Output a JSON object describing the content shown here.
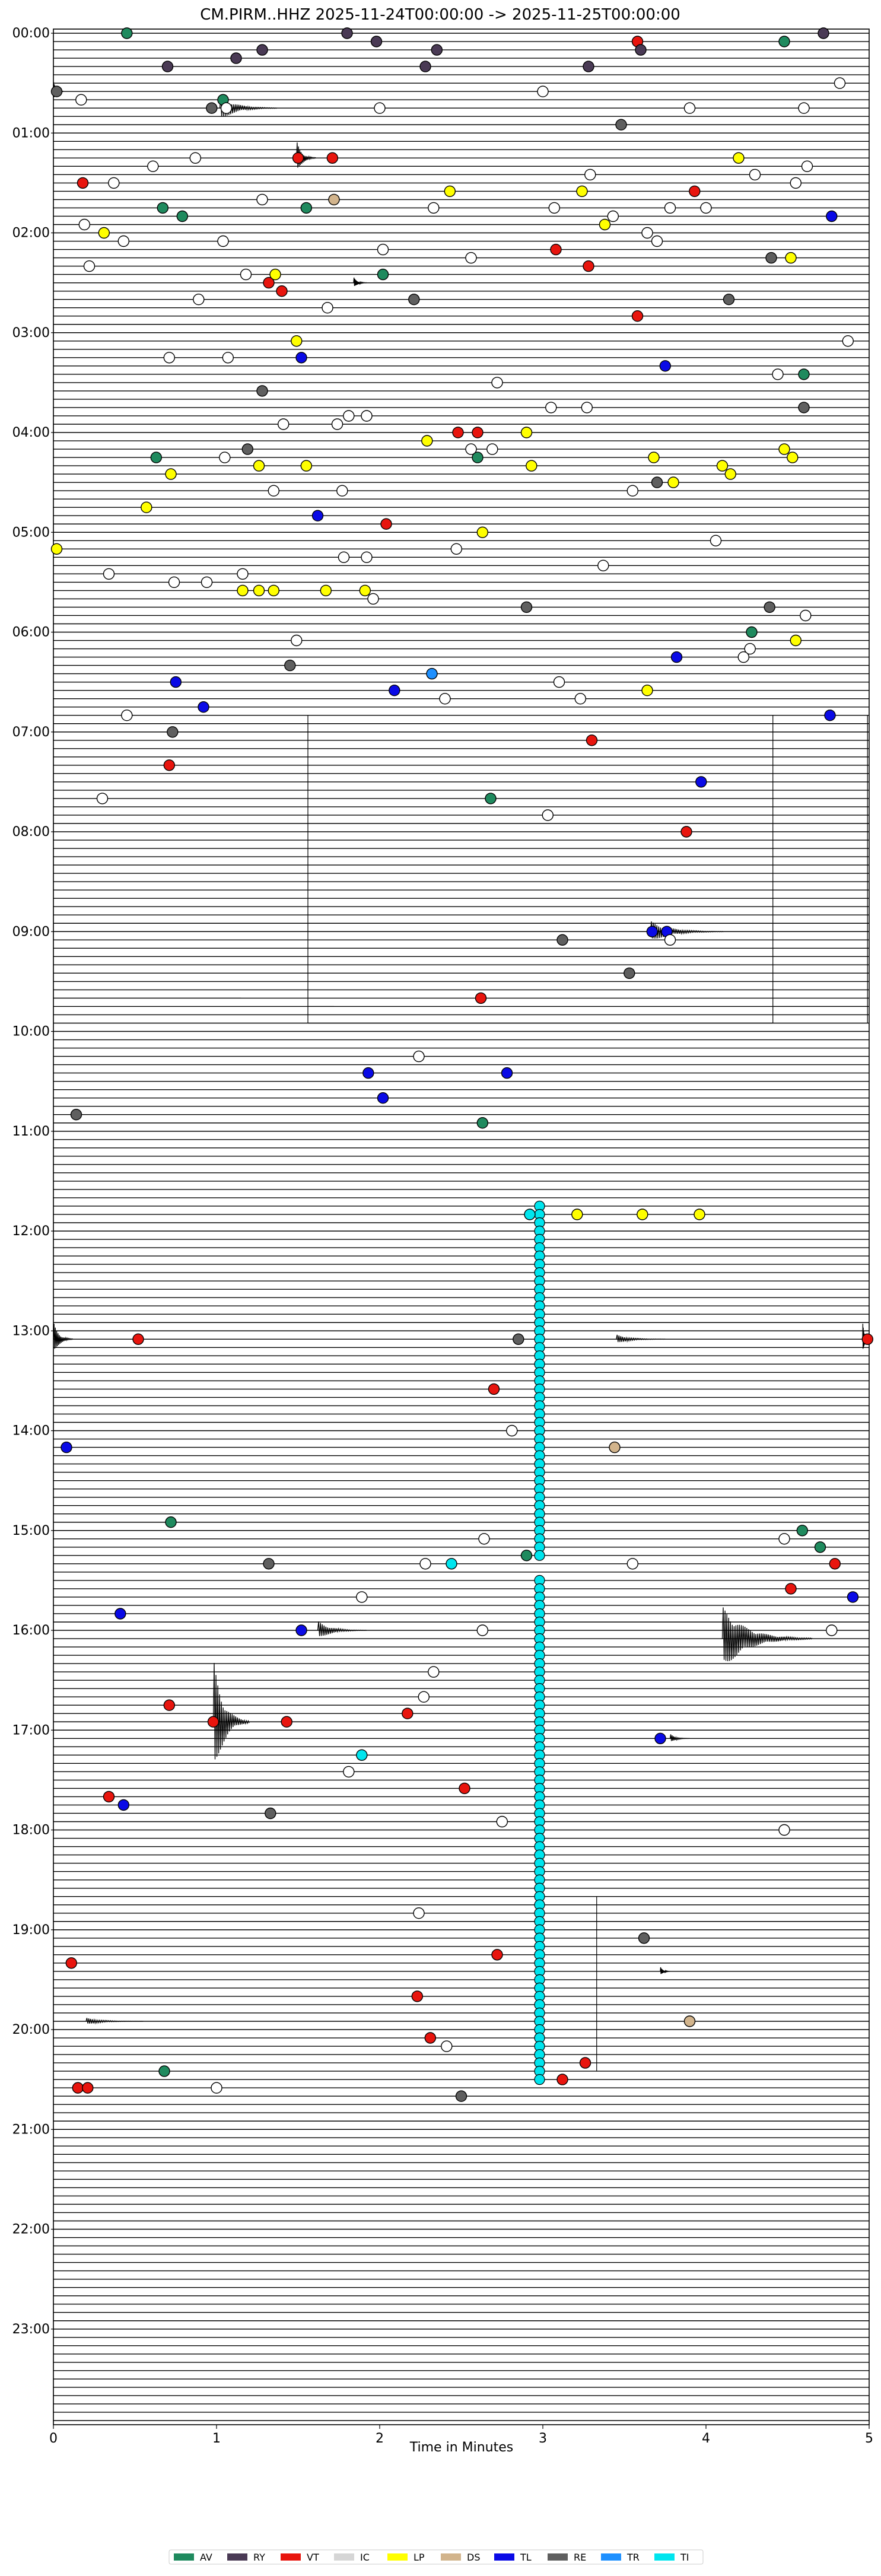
{
  "chart_data": {
    "type": "scatter",
    "title": "CM.PIRM..HHZ  2025-11-24T00:00:00 -> 2025-11-25T00:00:00",
    "xlabel": "Time in Minutes",
    "xlim": [
      0,
      5
    ],
    "x_ticks": [
      "0",
      "1",
      "2",
      "3",
      "4",
      "5"
    ],
    "trace_minutes_per_line": 5,
    "hour_labels": [
      "00:00",
      "01:00",
      "02:00",
      "03:00",
      "04:00",
      "05:00",
      "06:00",
      "07:00",
      "08:00",
      "09:00",
      "10:00",
      "11:00",
      "12:00",
      "13:00",
      "14:00",
      "15:00",
      "16:00",
      "17:00",
      "18:00",
      "19:00",
      "20:00",
      "21:00",
      "22:00",
      "23:00"
    ],
    "legend_position": "bottom-center",
    "legend": [
      {
        "code": "AV",
        "color": "#1f8a5e"
      },
      {
        "code": "RY",
        "color": "#4a3a55"
      },
      {
        "code": "VT",
        "color": "#e8150e"
      },
      {
        "code": "IC",
        "color": "#d6d6d6"
      },
      {
        "code": "LP",
        "color": "#ffff00"
      },
      {
        "code": "DS",
        "color": "#d2b48c"
      },
      {
        "code": "TL",
        "color": "#0a0ae6"
      },
      {
        "code": "RE",
        "color": "#5f5f5f"
      },
      {
        "code": "TR",
        "color": "#1e90ff"
      },
      {
        "code": "TI",
        "color": "#00e5ee"
      }
    ],
    "class_colors": {
      "AV": "#1f8a5e",
      "RY": "#4a3a55",
      "VT": "#e8150e",
      "IC": "#ffffff",
      "LP": "#ffff00",
      "DS": "#d2b48c",
      "TL": "#0a0ae6",
      "RE": "#5f5f5f",
      "TR": "#1e90ff",
      "TI": "#00e5ee"
    },
    "events": [
      {
        "line": 0,
        "x": 0.45,
        "c": "AV"
      },
      {
        "line": 0,
        "x": 1.8,
        "c": "RY"
      },
      {
        "line": 0,
        "x": 4.72,
        "c": "RY"
      },
      {
        "line": 1,
        "x": 1.98,
        "c": "RY"
      },
      {
        "line": 1,
        "x": 3.58,
        "c": "VT"
      },
      {
        "line": 1,
        "x": 4.48,
        "c": "AV"
      },
      {
        "line": 2,
        "x": 1.28,
        "c": "RY"
      },
      {
        "line": 2,
        "x": 2.35,
        "c": "RY"
      },
      {
        "line": 2,
        "x": 3.6,
        "c": "RY"
      },
      {
        "line": 3,
        "x": 1.12,
        "c": "RY"
      },
      {
        "line": 4,
        "x": 0.7,
        "c": "RY"
      },
      {
        "line": 4,
        "x": 2.28,
        "c": "RY"
      },
      {
        "line": 4,
        "x": 3.28,
        "c": "RY"
      },
      {
        "line": 6,
        "x": 4.82,
        "c": "IC"
      },
      {
        "line": 7,
        "x": 0.02,
        "c": "RE"
      },
      {
        "line": 7,
        "x": 3.0,
        "c": "IC"
      },
      {
        "line": 8,
        "x": 0.17,
        "c": "IC"
      },
      {
        "line": 8,
        "x": 1.04,
        "c": "AV"
      },
      {
        "line": 9,
        "x": 0.97,
        "c": "RE"
      },
      {
        "line": 9,
        "x": 1.06,
        "c": "IC"
      },
      {
        "line": 9,
        "x": 2.0,
        "c": "IC"
      },
      {
        "line": 9,
        "x": 3.9,
        "c": "IC"
      },
      {
        "line": 9,
        "x": 4.6,
        "c": "IC"
      },
      {
        "line": 11,
        "x": 3.48,
        "c": "RE"
      },
      {
        "line": 15,
        "x": 0.87,
        "c": "IC"
      },
      {
        "line": 15,
        "x": 1.5,
        "c": "VT"
      },
      {
        "line": 15,
        "x": 1.71,
        "c": "VT"
      },
      {
        "line": 15,
        "x": 4.2,
        "c": "LP"
      },
      {
        "line": 16,
        "x": 0.61,
        "c": "IC"
      },
      {
        "line": 16,
        "x": 4.62,
        "c": "IC"
      },
      {
        "line": 17,
        "x": 3.29,
        "c": "IC"
      },
      {
        "line": 17,
        "x": 4.3,
        "c": "IC"
      },
      {
        "line": 18,
        "x": 0.18,
        "c": "VT"
      },
      {
        "line": 18,
        "x": 0.37,
        "c": "IC"
      },
      {
        "line": 18,
        "x": 4.55,
        "c": "IC"
      },
      {
        "line": 19,
        "x": 2.43,
        "c": "LP"
      },
      {
        "line": 19,
        "x": 3.24,
        "c": "LP"
      },
      {
        "line": 19,
        "x": 3.93,
        "c": "VT"
      },
      {
        "line": 20,
        "x": 1.28,
        "c": "IC"
      },
      {
        "line": 20,
        "x": 1.72,
        "c": "DS"
      },
      {
        "line": 21,
        "x": 0.67,
        "c": "AV"
      },
      {
        "line": 21,
        "x": 1.55,
        "c": "AV"
      },
      {
        "line": 21,
        "x": 2.33,
        "c": "IC"
      },
      {
        "line": 21,
        "x": 3.07,
        "c": "IC"
      },
      {
        "line": 21,
        "x": 3.78,
        "c": "IC"
      },
      {
        "line": 21,
        "x": 4.0,
        "c": "IC"
      },
      {
        "line": 22,
        "x": 0.79,
        "c": "AV"
      },
      {
        "line": 22,
        "x": 3.43,
        "c": "IC"
      },
      {
        "line": 22,
        "x": 4.77,
        "c": "TL"
      },
      {
        "line": 23,
        "x": 0.19,
        "c": "IC"
      },
      {
        "line": 23,
        "x": 3.38,
        "c": "LP"
      },
      {
        "line": 24,
        "x": 0.31,
        "c": "LP"
      },
      {
        "line": 24,
        "x": 3.64,
        "c": "IC"
      },
      {
        "line": 25,
        "x": 0.43,
        "c": "IC"
      },
      {
        "line": 25,
        "x": 1.04,
        "c": "IC"
      },
      {
        "line": 25,
        "x": 3.7,
        "c": "IC"
      },
      {
        "line": 26,
        "x": 2.02,
        "c": "IC"
      },
      {
        "line": 26,
        "x": 3.08,
        "c": "VT"
      },
      {
        "line": 27,
        "x": 2.56,
        "c": "IC"
      },
      {
        "line": 27,
        "x": 4.4,
        "c": "RE"
      },
      {
        "line": 27,
        "x": 4.52,
        "c": "LP"
      },
      {
        "line": 28,
        "x": 0.22,
        "c": "IC"
      },
      {
        "line": 28,
        "x": 3.28,
        "c": "VT"
      },
      {
        "line": 29,
        "x": 1.18,
        "c": "IC"
      },
      {
        "line": 29,
        "x": 1.36,
        "c": "LP"
      },
      {
        "line": 29,
        "x": 2.02,
        "c": "AV"
      },
      {
        "line": 30,
        "x": 1.32,
        "c": "VT"
      },
      {
        "line": 31,
        "x": 1.4,
        "c": "VT"
      },
      {
        "line": 32,
        "x": 0.89,
        "c": "IC"
      },
      {
        "line": 32,
        "x": 2.21,
        "c": "RE"
      },
      {
        "line": 32,
        "x": 4.14,
        "c": "RE"
      },
      {
        "line": 33,
        "x": 1.68,
        "c": "IC"
      },
      {
        "line": 34,
        "x": 3.58,
        "c": "VT"
      },
      {
        "line": 37,
        "x": 1.49,
        "c": "LP"
      },
      {
        "line": 37,
        "x": 4.87,
        "c": "IC"
      },
      {
        "line": 39,
        "x": 0.71,
        "c": "IC"
      },
      {
        "line": 39,
        "x": 1.07,
        "c": "IC"
      },
      {
        "line": 39,
        "x": 1.52,
        "c": "TL"
      },
      {
        "line": 40,
        "x": 3.75,
        "c": "TL"
      },
      {
        "line": 41,
        "x": 4.44,
        "c": "IC"
      },
      {
        "line": 41,
        "x": 4.6,
        "c": "AV"
      },
      {
        "line": 42,
        "x": 2.72,
        "c": "IC"
      },
      {
        "line": 43,
        "x": 1.28,
        "c": "RE"
      },
      {
        "line": 45,
        "x": 3.05,
        "c": "IC"
      },
      {
        "line": 45,
        "x": 3.27,
        "c": "IC"
      },
      {
        "line": 45,
        "x": 4.6,
        "c": "RE"
      },
      {
        "line": 46,
        "x": 1.81,
        "c": "IC"
      },
      {
        "line": 46,
        "x": 1.92,
        "c": "IC"
      },
      {
        "line": 47,
        "x": 1.41,
        "c": "IC"
      },
      {
        "line": 47,
        "x": 1.74,
        "c": "IC"
      },
      {
        "line": 48,
        "x": 2.48,
        "c": "VT"
      },
      {
        "line": 48,
        "x": 2.6,
        "c": "VT"
      },
      {
        "line": 48,
        "x": 2.9,
        "c": "LP"
      },
      {
        "line": 49,
        "x": 2.29,
        "c": "LP"
      },
      {
        "line": 50,
        "x": 1.19,
        "c": "RE"
      },
      {
        "line": 50,
        "x": 2.56,
        "c": "IC"
      },
      {
        "line": 50,
        "x": 2.69,
        "c": "IC"
      },
      {
        "line": 50,
        "x": 4.48,
        "c": "LP"
      },
      {
        "line": 51,
        "x": 0.63,
        "c": "AV"
      },
      {
        "line": 51,
        "x": 1.05,
        "c": "IC"
      },
      {
        "line": 51,
        "x": 2.6,
        "c": "AV"
      },
      {
        "line": 51,
        "x": 3.68,
        "c": "LP"
      },
      {
        "line": 51,
        "x": 4.53,
        "c": "LP"
      },
      {
        "line": 52,
        "x": 1.26,
        "c": "LP"
      },
      {
        "line": 52,
        "x": 1.55,
        "c": "LP"
      },
      {
        "line": 52,
        "x": 2.93,
        "c": "LP"
      },
      {
        "line": 52,
        "x": 4.1,
        "c": "LP"
      },
      {
        "line": 53,
        "x": 0.72,
        "c": "LP"
      },
      {
        "line": 53,
        "x": 4.15,
        "c": "LP"
      },
      {
        "line": 54,
        "x": 3.7,
        "c": "RE"
      },
      {
        "line": 54,
        "x": 3.8,
        "c": "LP"
      },
      {
        "line": 55,
        "x": 1.35,
        "c": "IC"
      },
      {
        "line": 55,
        "x": 1.77,
        "c": "IC"
      },
      {
        "line": 55,
        "x": 3.55,
        "c": "IC"
      },
      {
        "line": 57,
        "x": 0.57,
        "c": "LP"
      },
      {
        "line": 58,
        "x": 1.62,
        "c": "TL"
      },
      {
        "line": 59,
        "x": 2.04,
        "c": "VT"
      },
      {
        "line": 60,
        "x": 2.63,
        "c": "LP"
      },
      {
        "line": 61,
        "x": 4.06,
        "c": "IC"
      },
      {
        "line": 62,
        "x": 0.02,
        "c": "LP"
      },
      {
        "line": 62,
        "x": 2.47,
        "c": "IC"
      },
      {
        "line": 63,
        "x": 1.78,
        "c": "IC"
      },
      {
        "line": 63,
        "x": 1.92,
        "c": "IC"
      },
      {
        "line": 64,
        "x": 3.37,
        "c": "IC"
      },
      {
        "line": 65,
        "x": 0.34,
        "c": "IC"
      },
      {
        "line": 65,
        "x": 1.16,
        "c": "IC"
      },
      {
        "line": 66,
        "x": 0.74,
        "c": "IC"
      },
      {
        "line": 66,
        "x": 0.94,
        "c": "IC"
      },
      {
        "line": 67,
        "x": 1.16,
        "c": "LP"
      },
      {
        "line": 67,
        "x": 1.26,
        "c": "LP"
      },
      {
        "line": 67,
        "x": 1.35,
        "c": "LP"
      },
      {
        "line": 67,
        "x": 1.67,
        "c": "LP"
      },
      {
        "line": 67,
        "x": 1.91,
        "c": "LP"
      },
      {
        "line": 68,
        "x": 1.96,
        "c": "IC"
      },
      {
        "line": 69,
        "x": 2.9,
        "c": "RE"
      },
      {
        "line": 69,
        "x": 4.39,
        "c": "RE"
      },
      {
        "line": 70,
        "x": 4.61,
        "c": "IC"
      },
      {
        "line": 72,
        "x": 4.28,
        "c": "AV"
      },
      {
        "line": 73,
        "x": 1.49,
        "c": "IC"
      },
      {
        "line": 73,
        "x": 4.55,
        "c": "LP"
      },
      {
        "line": 74,
        "x": 4.27,
        "c": "IC"
      },
      {
        "line": 75,
        "x": 3.82,
        "c": "TL"
      },
      {
        "line": 75,
        "x": 4.23,
        "c": "IC"
      },
      {
        "line": 76,
        "x": 1.45,
        "c": "RE"
      },
      {
        "line": 77,
        "x": 2.32,
        "c": "TR"
      },
      {
        "line": 78,
        "x": 0.75,
        "c": "TL"
      },
      {
        "line": 78,
        "x": 3.1,
        "c": "IC"
      },
      {
        "line": 79,
        "x": 2.09,
        "c": "TL"
      },
      {
        "line": 79,
        "x": 3.64,
        "c": "LP"
      },
      {
        "line": 80,
        "x": 2.4,
        "c": "IC"
      },
      {
        "line": 80,
        "x": 3.23,
        "c": "IC"
      },
      {
        "line": 81,
        "x": 0.92,
        "c": "TL"
      },
      {
        "line": 82,
        "x": 0.45,
        "c": "IC"
      },
      {
        "line": 82,
        "x": 4.76,
        "c": "TL"
      },
      {
        "line": 84,
        "x": 0.73,
        "c": "RE"
      },
      {
        "line": 85,
        "x": 3.3,
        "c": "VT"
      },
      {
        "line": 88,
        "x": 0.71,
        "c": "VT"
      },
      {
        "line": 90,
        "x": 3.97,
        "c": "TL"
      },
      {
        "line": 92,
        "x": 0.3,
        "c": "IC"
      },
      {
        "line": 92,
        "x": 2.68,
        "c": "AV"
      },
      {
        "line": 94,
        "x": 3.03,
        "c": "IC"
      },
      {
        "line": 96,
        "x": 3.88,
        "c": "VT"
      },
      {
        "line": 108,
        "x": 3.67,
        "c": "TL"
      },
      {
        "line": 108,
        "x": 3.76,
        "c": "TL"
      },
      {
        "line": 109,
        "x": 3.12,
        "c": "RE"
      },
      {
        "line": 109,
        "x": 3.78,
        "c": "IC"
      },
      {
        "line": 113,
        "x": 3.53,
        "c": "RE"
      },
      {
        "line": 116,
        "x": 2.62,
        "c": "VT"
      },
      {
        "line": 123,
        "x": 2.24,
        "c": "IC"
      },
      {
        "line": 125,
        "x": 1.93,
        "c": "TL"
      },
      {
        "line": 125,
        "x": 2.78,
        "c": "TL"
      },
      {
        "line": 128,
        "x": 2.02,
        "c": "TL"
      },
      {
        "line": 130,
        "x": 0.14,
        "c": "RE"
      },
      {
        "line": 131,
        "x": 2.63,
        "c": "AV"
      },
      {
        "line": 142,
        "x": 3.21,
        "c": "LP"
      },
      {
        "line": 142,
        "x": 3.61,
        "c": "LP"
      },
      {
        "line": 142,
        "x": 3.96,
        "c": "LP"
      },
      {
        "line": 157,
        "x": 0.52,
        "c": "VT"
      },
      {
        "line": 157,
        "x": 2.85,
        "c": "RE"
      },
      {
        "line": 157,
        "x": 4.99,
        "c": "VT"
      },
      {
        "line": 163,
        "x": 2.7,
        "c": "VT"
      },
      {
        "line": 168,
        "x": 2.81,
        "c": "IC"
      },
      {
        "line": 170,
        "x": 0.08,
        "c": "TL"
      },
      {
        "line": 170,
        "x": 3.44,
        "c": "DS"
      },
      {
        "line": 179,
        "x": 0.72,
        "c": "AV"
      },
      {
        "line": 180,
        "x": 4.59,
        "c": "AV"
      },
      {
        "line": 181,
        "x": 2.64,
        "c": "IC"
      },
      {
        "line": 181,
        "x": 4.48,
        "c": "IC"
      },
      {
        "line": 182,
        "x": 4.7,
        "c": "AV"
      },
      {
        "line": 183,
        "x": 2.9,
        "c": "AV"
      },
      {
        "line": 184,
        "x": 1.32,
        "c": "RE"
      },
      {
        "line": 184,
        "x": 2.28,
        "c": "IC"
      },
      {
        "line": 184,
        "x": 2.44,
        "c": "TI"
      },
      {
        "line": 184,
        "x": 3.55,
        "c": "IC"
      },
      {
        "line": 184,
        "x": 4.79,
        "c": "VT"
      },
      {
        "line": 187,
        "x": 4.52,
        "c": "VT"
      },
      {
        "line": 188,
        "x": 1.89,
        "c": "IC"
      },
      {
        "line": 188,
        "x": 4.9,
        "c": "TL"
      },
      {
        "line": 190,
        "x": 0.41,
        "c": "TL"
      },
      {
        "line": 192,
        "x": 1.52,
        "c": "TL"
      },
      {
        "line": 192,
        "x": 2.63,
        "c": "IC"
      },
      {
        "line": 192,
        "x": 4.77,
        "c": "IC"
      },
      {
        "line": 197,
        "x": 2.33,
        "c": "IC"
      },
      {
        "line": 200,
        "x": 2.27,
        "c": "IC"
      },
      {
        "line": 201,
        "x": 0.71,
        "c": "VT"
      },
      {
        "line": 202,
        "x": 2.17,
        "c": "VT"
      },
      {
        "line": 203,
        "x": 0.98,
        "c": "VT"
      },
      {
        "line": 203,
        "x": 1.43,
        "c": "VT"
      },
      {
        "line": 205,
        "x": 3.72,
        "c": "TL"
      },
      {
        "line": 207,
        "x": 1.89,
        "c": "TI"
      },
      {
        "line": 209,
        "x": 1.81,
        "c": "IC"
      },
      {
        "line": 211,
        "x": 2.52,
        "c": "VT"
      },
      {
        "line": 212,
        "x": 0.34,
        "c": "VT"
      },
      {
        "line": 213,
        "x": 0.43,
        "c": "TL"
      },
      {
        "line": 214,
        "x": 1.33,
        "c": "RE"
      },
      {
        "line": 215,
        "x": 2.75,
        "c": "IC"
      },
      {
        "line": 216,
        "x": 4.48,
        "c": "IC"
      },
      {
        "line": 226,
        "x": 2.24,
        "c": "IC"
      },
      {
        "line": 229,
        "x": 3.62,
        "c": "RE"
      },
      {
        "line": 231,
        "x": 2.72,
        "c": "VT"
      },
      {
        "line": 232,
        "x": 0.11,
        "c": "VT"
      },
      {
        "line": 236,
        "x": 2.23,
        "c": "VT"
      },
      {
        "line": 239,
        "x": 3.9,
        "c": "DS"
      },
      {
        "line": 241,
        "x": 2.31,
        "c": "VT"
      },
      {
        "line": 242,
        "x": 2.41,
        "c": "IC"
      },
      {
        "line": 244,
        "x": 3.26,
        "c": "VT"
      },
      {
        "line": 245,
        "x": 0.68,
        "c": "AV"
      },
      {
        "line": 246,
        "x": 3.12,
        "c": "VT"
      },
      {
        "line": 247,
        "x": 0.15,
        "c": "VT"
      },
      {
        "line": 247,
        "x": 0.21,
        "c": "VT"
      },
      {
        "line": 247,
        "x": 1.0,
        "c": "IC"
      },
      {
        "line": 248,
        "x": 2.5,
        "c": "RE"
      }
    ],
    "tremor_series": {
      "class": "TI",
      "x": 2.98,
      "line_ranges": [
        [
          141,
          183
        ],
        [
          186,
          246
        ]
      ]
    },
    "extra_tremor_markers": [
      {
        "line": 142,
        "x": 2.92,
        "c": "TI"
      }
    ]
  }
}
